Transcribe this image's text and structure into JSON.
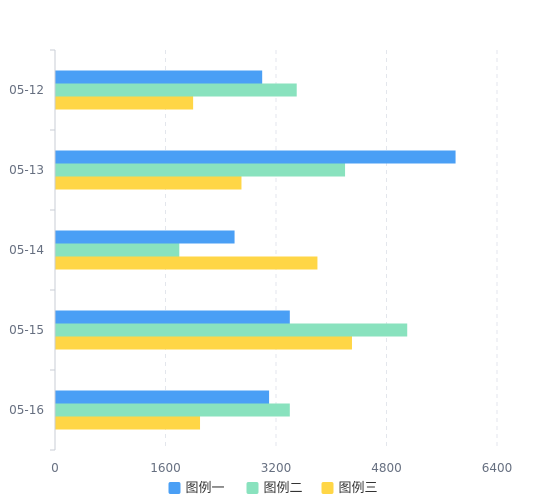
{
  "chart_data": {
    "type": "bar",
    "orientation": "horizontal",
    "categories": [
      "05-12",
      "05-13",
      "05-14",
      "05-15",
      "05-16"
    ],
    "series": [
      {
        "name": "图例一",
        "color": "#4a9ff5",
        "values": [
          3000,
          5800,
          2600,
          3400,
          3100
        ]
      },
      {
        "name": "图例二",
        "color": "#89e2be",
        "values": [
          3500,
          4200,
          1800,
          5100,
          3400
        ]
      },
      {
        "name": "图例三",
        "color": "#ffd646",
        "values": [
          2000,
          2700,
          3800,
          4300,
          2100
        ]
      }
    ],
    "x_axis": {
      "min": 0,
      "max": 6400,
      "ticks": [
        "0",
        "1600",
        "3200",
        "4800",
        "6400"
      ],
      "grid": true,
      "grid_style": "dashed"
    },
    "legend_position": "bottom-center",
    "title": "",
    "xlabel": "",
    "ylabel": ""
  },
  "colors": {
    "axis_line": "#c9cdd6",
    "grid_line": "#e3e6ec",
    "tick_text": "#666f80"
  }
}
